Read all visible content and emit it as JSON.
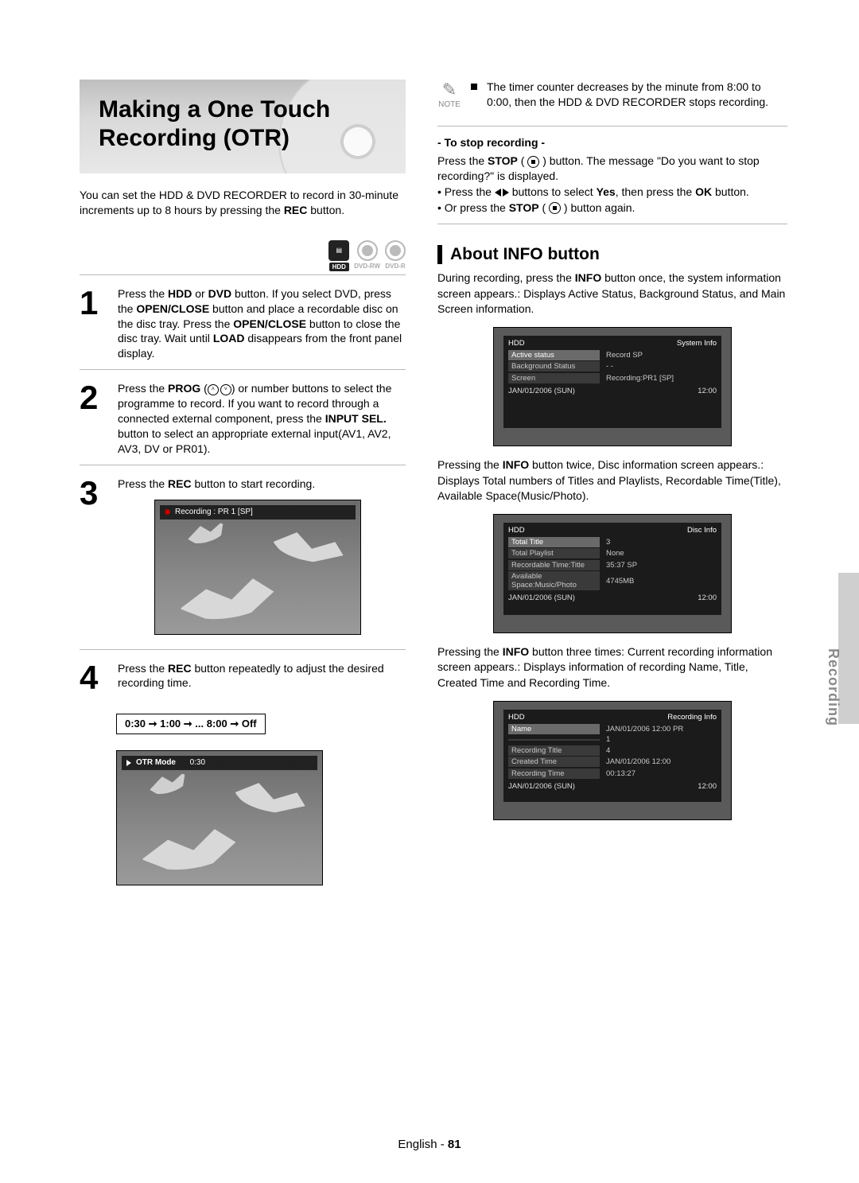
{
  "title": "Making a One Touch Recording (OTR)",
  "intro_parts": [
    "You can set the HDD & DVD RECORDER to record in 30-minute increments up to 8 hours by pressing the ",
    "REC",
    " button."
  ],
  "badges": {
    "hdd": "HDD",
    "rw": "DVD-RW",
    "r": "DVD-R"
  },
  "steps": {
    "s1": {
      "num": "1",
      "parts": [
        "Press the ",
        "HDD",
        " or ",
        "DVD",
        " button.\nIf you select DVD, press the ",
        "OPEN/CLOSE",
        " button and place a recordable disc on the disc tray. Press the ",
        "OPEN/CLOSE",
        " button to close the disc tray. Wait until ",
        "LOAD",
        " disappears from the front panel display."
      ]
    },
    "s2": {
      "num": "2",
      "parts": [
        "Press the ",
        "PROG",
        " (",
        "",
        ") or number buttons to select the programme to record. If you want to record through a connected external component, press the ",
        "INPUT SEL.",
        " button to select an appropriate external input(AV1, AV2, AV3, DV or PR01)."
      ]
    },
    "s3": {
      "num": "3",
      "parts": [
        "Press the ",
        "REC",
        " button to start recording."
      ]
    },
    "s4": {
      "num": "4",
      "parts": [
        "Press the ",
        "REC",
        " button repeatedly to adjust the desired recording time."
      ]
    }
  },
  "time_sequence": "0:30 ➞ 1:00 ➞ ... 8:00 ➞ Off",
  "screen1_bar": "Recording : PR 1 [SP]",
  "screen2_bar_label": "OTR Mode",
  "screen2_bar_value": "0:30",
  "note": {
    "label": "NOTE",
    "text": "The timer counter decreases by the minute from 8:00 to 0:00, then the HDD & DVD RECORDER stops recording."
  },
  "stop": {
    "heading": "- To stop recording -",
    "p1a": "Press the ",
    "p1b": "STOP",
    "p1c": " ( ",
    "p1d": " ) button. The message \"Do you want to stop recording?\" is displayed.",
    "b1a": "• Press the ",
    "b1b": " buttons to select ",
    "b1c": "Yes",
    "b1d": ", then press the ",
    "b1e": "OK",
    "b1f": " button.",
    "b2a": "• Or press the ",
    "b2b": "STOP",
    "b2c": " ( ",
    "b2d": " ) button again."
  },
  "info": {
    "title": "About INFO button",
    "p1a": "During recording, press the ",
    "p1b": "INFO",
    "p1c": " button once, the system information screen appears.: Displays Active Status, Background Status, and Main Screen information.",
    "p2a": "Pressing the ",
    "p2b": "INFO",
    "p2c": " button twice, Disc information screen appears.: Displays Total numbers of Titles and Playlists, Recordable Time(Title), Available Space(Music/Photo).",
    "p3a": "Pressing the ",
    "p3b": "INFO",
    "p3c": " button three times: Current recording information screen appears.: Displays information of recording Name, Title, Created Time and Recording Time."
  },
  "osd1": {
    "left": "HDD",
    "right": "System Info",
    "rows": [
      {
        "label": "Active status",
        "val": "Record  SP",
        "hl": true
      },
      {
        "label": "Background Status",
        "val": "- -"
      },
      {
        "label": "Screen",
        "val": "Recording:PR1 [SP]"
      }
    ],
    "date": "JAN/01/2006 (SUN)",
    "time": "12:00"
  },
  "osd2": {
    "left": "HDD",
    "right": "Disc Info",
    "rows": [
      {
        "label": "Total Title",
        "val": "3",
        "hl": true
      },
      {
        "label": "Total Playlist",
        "val": "None"
      },
      {
        "label": "Recordable Time:Title",
        "val": "35:37  SP"
      },
      {
        "label": "Available Space:Music/Photo",
        "val": "4745MB"
      }
    ],
    "date": "JAN/01/2006 (SUN)",
    "time": "12:00"
  },
  "osd3": {
    "left": "HDD",
    "right": "Recording Info",
    "rows": [
      {
        "label": "Name",
        "val": "JAN/01/2006 12:00 PR",
        "hl": true
      },
      {
        "label": "",
        "val": "1"
      },
      {
        "label": "Recording Title",
        "val": "4"
      },
      {
        "label": "Created Time",
        "val": "JAN/01/2006 12:00"
      },
      {
        "label": "Recording Time",
        "val": "00:13:27"
      }
    ],
    "date": "JAN/01/2006 (SUN)",
    "time": "12:00"
  },
  "side_tab": "Recording",
  "footer": {
    "lang": "English",
    "sep": " - ",
    "page": "81"
  }
}
